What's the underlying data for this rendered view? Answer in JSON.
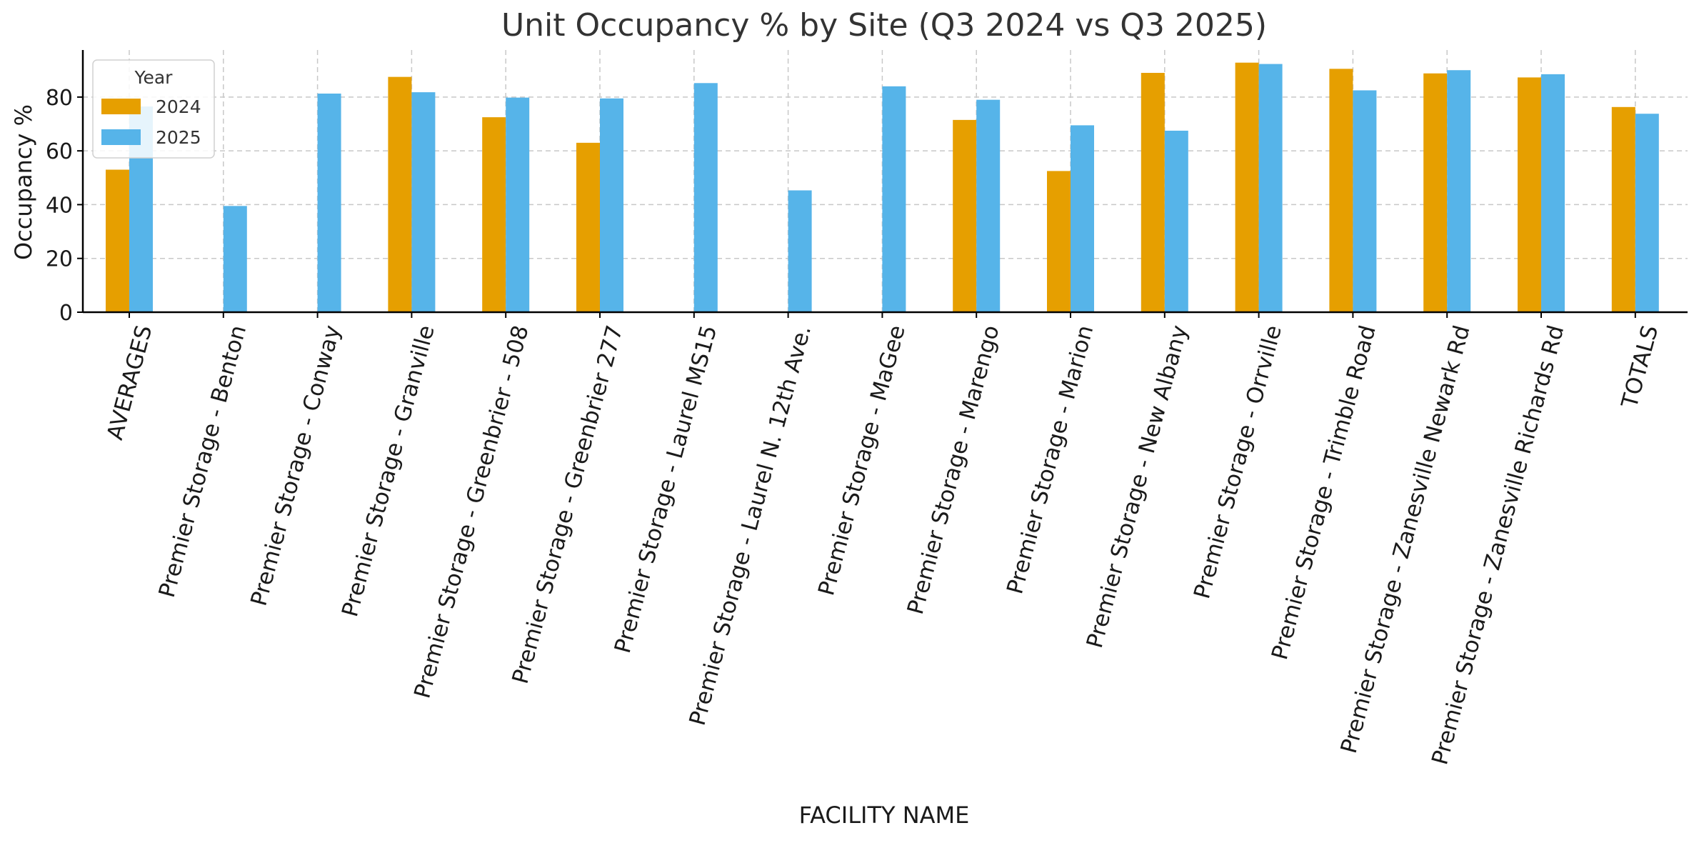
{
  "chart_data": {
    "type": "bar",
    "title": "Unit Occupancy % by Site (Q3 2024 vs Q3 2025)",
    "xlabel": "FACILITY NAME",
    "ylabel": "Occupancy %",
    "ylim": [
      0,
      97.5
    ],
    "yticks": [
      0,
      20,
      40,
      60,
      80
    ],
    "grid": true,
    "legend": {
      "title": "Year",
      "position": "top-left"
    },
    "categories": [
      "AVERAGES",
      "Premier Storage - Benton",
      "Premier Storage - Conway",
      "Premier Storage - Granville",
      "Premier Storage - Greenbrier - 508",
      "Premier Storage - Greenbrier 277",
      "Premier Storage - Laurel MS15",
      "Premier Storage - Laurel N. 12th Ave.",
      "Premier Storage - MaGee",
      "Premier Storage - Marengo",
      "Premier Storage - Marion",
      "Premier Storage - New Albany",
      "Premier Storage - Orrville",
      "Premier Storage - Trimble Road",
      "Premier Storage - Zanesville Newark Rd",
      "Premier Storage - Zanesville Richards Rd",
      "TOTALS"
    ],
    "series": [
      {
        "name": "2024",
        "color": "#E69F00",
        "values": [
          53.0,
          null,
          null,
          87.5,
          72.5,
          63.0,
          null,
          null,
          null,
          71.5,
          52.5,
          89.0,
          92.8,
          90.5,
          88.8,
          87.3,
          76.3
        ]
      },
      {
        "name": "2025",
        "color": "#56B4E9",
        "values": [
          76.5,
          39.5,
          81.3,
          81.8,
          79.8,
          79.5,
          85.2,
          45.3,
          84.0,
          79.0,
          69.5,
          67.5,
          92.3,
          82.5,
          90.0,
          88.5,
          73.8
        ]
      }
    ]
  }
}
